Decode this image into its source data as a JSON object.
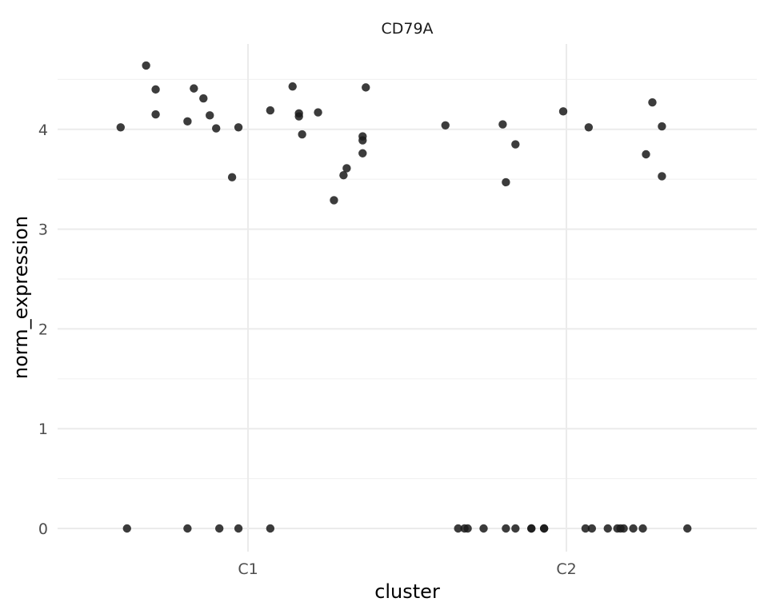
{
  "chart_data": {
    "type": "scatter",
    "title": "CD79A",
    "xlabel": "cluster",
    "ylabel": "norm_expression",
    "categories": [
      "C1",
      "C2"
    ],
    "y_ticks": [
      "0",
      "1",
      "2",
      "3",
      "4"
    ],
    "ylim": [
      -0.3,
      4.9
    ],
    "grid": true,
    "point_color": "#1a1a1a",
    "series": [
      {
        "values": [
          {
            "x": 0.6,
            "y": 4.02
          },
          {
            "x": 0.68,
            "y": 4.64
          },
          {
            "x": 0.71,
            "y": 4.4
          },
          {
            "x": 0.71,
            "y": 4.15
          },
          {
            "x": 0.81,
            "y": 4.08
          },
          {
            "x": 0.83,
            "y": 4.41
          },
          {
            "x": 0.86,
            "y": 4.31
          },
          {
            "x": 0.88,
            "y": 4.14
          },
          {
            "x": 0.9,
            "y": 4.01
          },
          {
            "x": 0.95,
            "y": 3.52
          },
          {
            "x": 0.97,
            "y": 4.02
          },
          {
            "x": 1.07,
            "y": 4.19
          },
          {
            "x": 1.14,
            "y": 4.43
          },
          {
            "x": 1.16,
            "y": 4.16
          },
          {
            "x": 1.16,
            "y": 4.13
          },
          {
            "x": 1.17,
            "y": 3.95
          },
          {
            "x": 1.22,
            "y": 4.17
          },
          {
            "x": 1.27,
            "y": 3.29
          },
          {
            "x": 1.3,
            "y": 3.54
          },
          {
            "x": 1.31,
            "y": 3.61
          },
          {
            "x": 1.36,
            "y": 3.76
          },
          {
            "x": 1.36,
            "y": 3.89
          },
          {
            "x": 1.36,
            "y": 3.93
          },
          {
            "x": 1.37,
            "y": 4.42
          },
          {
            "x": 0.62,
            "y": 0
          },
          {
            "x": 0.81,
            "y": 0
          },
          {
            "x": 0.91,
            "y": 0
          },
          {
            "x": 0.97,
            "y": 0
          },
          {
            "x": 1.07,
            "y": 0
          },
          {
            "x": 1.62,
            "y": 4.04
          },
          {
            "x": 1.8,
            "y": 4.05
          },
          {
            "x": 1.81,
            "y": 3.47
          },
          {
            "x": 1.84,
            "y": 3.85
          },
          {
            "x": 1.99,
            "y": 4.18
          },
          {
            "x": 2.07,
            "y": 4.02
          },
          {
            "x": 2.25,
            "y": 3.75
          },
          {
            "x": 2.27,
            "y": 4.27
          },
          {
            "x": 2.3,
            "y": 4.03
          },
          {
            "x": 2.3,
            "y": 3.53
          },
          {
            "x": 1.66,
            "y": 0
          },
          {
            "x": 1.68,
            "y": 0
          },
          {
            "x": 1.69,
            "y": 0
          },
          {
            "x": 1.74,
            "y": 0
          },
          {
            "x": 1.81,
            "y": 0
          },
          {
            "x": 1.84,
            "y": 0
          },
          {
            "x": 1.89,
            "y": 0
          },
          {
            "x": 1.89,
            "y": 0
          },
          {
            "x": 1.93,
            "y": 0
          },
          {
            "x": 1.93,
            "y": 0
          },
          {
            "x": 2.06,
            "y": 0
          },
          {
            "x": 2.08,
            "y": 0
          },
          {
            "x": 2.13,
            "y": 0
          },
          {
            "x": 2.16,
            "y": 0
          },
          {
            "x": 2.17,
            "y": 0
          },
          {
            "x": 2.18,
            "y": 0
          },
          {
            "x": 2.21,
            "y": 0
          },
          {
            "x": 2.24,
            "y": 0
          },
          {
            "x": 2.38,
            "y": 0
          }
        ]
      }
    ]
  }
}
